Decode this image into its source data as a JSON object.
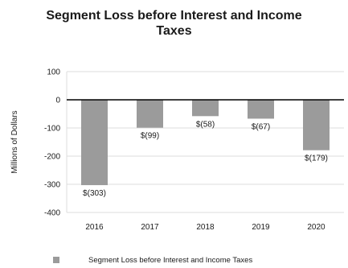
{
  "chart_data": {
    "type": "bar",
    "title": "Segment Loss before Interest and Income Taxes",
    "xlabel": "",
    "ylabel": "Millions of Dollars",
    "categories": [
      "2016",
      "2017",
      "2018",
      "2019",
      "2020"
    ],
    "series": [
      {
        "name": "Segment Loss before Interest and Income Taxes",
        "values": [
          -303,
          -99,
          -58,
          -67,
          -179
        ],
        "labels": [
          "$(303)",
          "$(99)",
          "$(58)",
          "$(67)",
          "$(179)"
        ]
      }
    ],
    "ylim": [
      -400,
      100
    ],
    "yticks": [
      100,
      0,
      -100,
      -200,
      -300,
      -400
    ],
    "ytick_labels": [
      "100",
      "0",
      "-100",
      "-200",
      "-300",
      "-400"
    ],
    "grid": true,
    "legend_position": "bottom",
    "colors": {
      "bar": "#9b9b9b",
      "grid": "#dcdcdc",
      "axis": "#000000"
    }
  }
}
